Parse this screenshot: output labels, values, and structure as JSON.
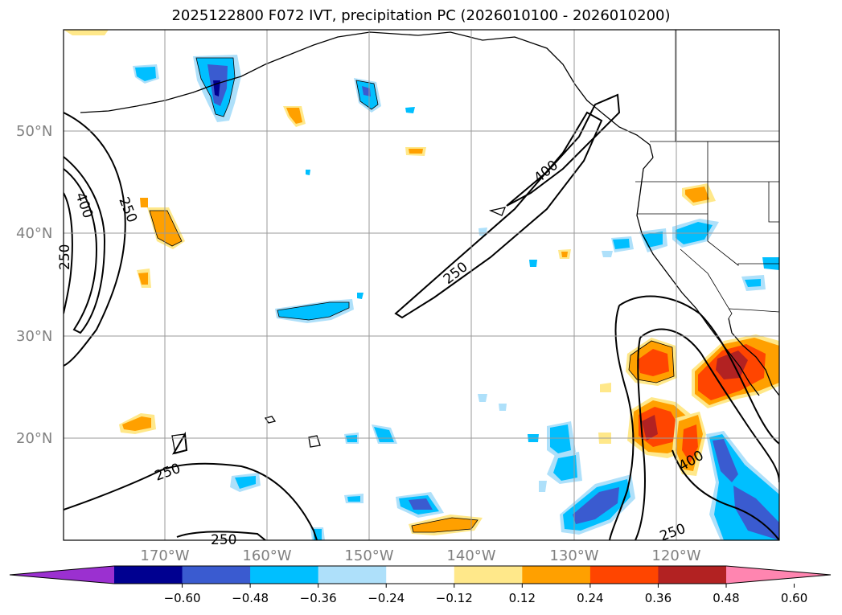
{
  "title": "2025122800 F072 IVT, precipitation PC (2026010100 - 2026010200)",
  "lat_labels": [
    "50°N",
    "40°N",
    "30°N",
    "20°N"
  ],
  "lon_labels": [
    "170°W",
    "160°W",
    "150°W",
    "140°W",
    "130°W",
    "120°W"
  ],
  "contour_labels": [
    "400",
    "250",
    "250",
    "400",
    "250",
    "250",
    "250",
    "400",
    "250"
  ],
  "colorbar": {
    "labels": [
      "−0.60",
      "−0.48",
      "−0.36",
      "−0.24",
      "−0.12",
      "0.12",
      "0.24",
      "0.36",
      "0.48",
      "0.60"
    ],
    "colors": [
      "#9b30d0",
      "#000090",
      "#3a5bd0",
      "#00bfff",
      "#aee0fa",
      "#ffffff",
      "#ffe88a",
      "#ffa000",
      "#ff4500",
      "#b22222",
      "#ff85b0"
    ]
  },
  "colors": {
    "neg_strong": "#000090",
    "neg_med": "#3a5bd0",
    "neg": "#00bfff",
    "neg_light": "#aee0fa",
    "pos_light": "#ffe88a",
    "pos": "#ffa000",
    "pos_med": "#ff4500",
    "pos_strong": "#b22222"
  }
}
